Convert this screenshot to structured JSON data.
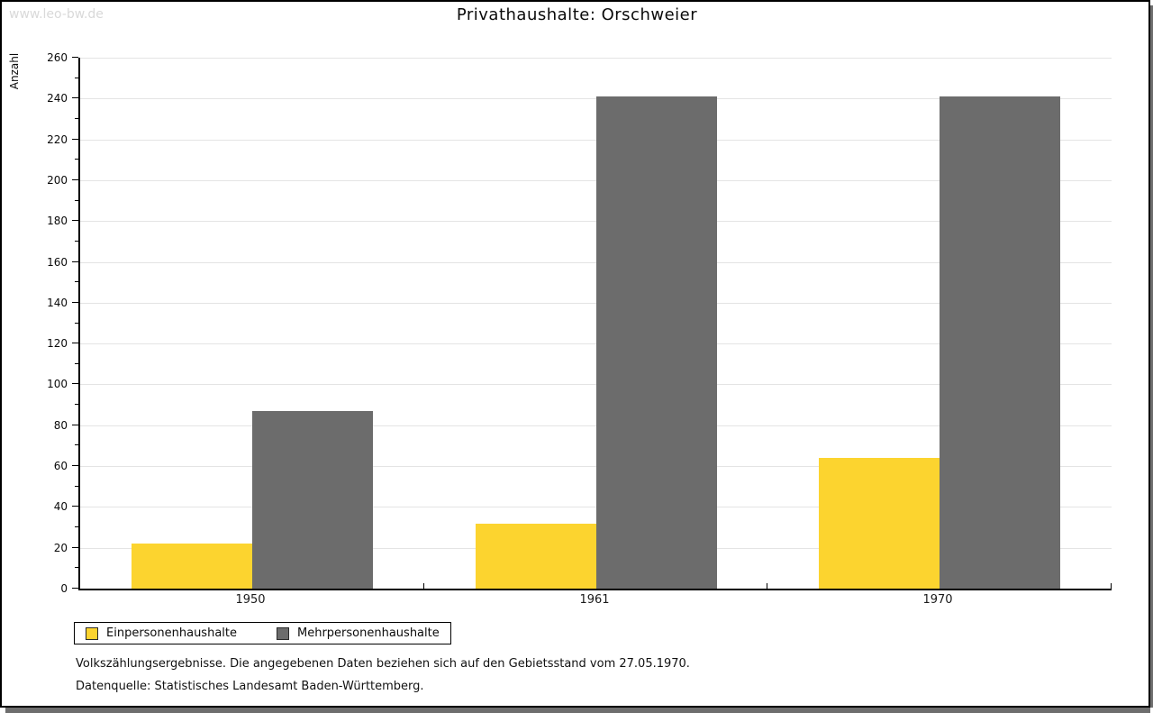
{
  "watermark": "www.leo-bw.de",
  "title": "Privathaushalte: Orschweier",
  "chart_data": {
    "type": "bar",
    "title": "Privathaushalte: Orschweier",
    "xlabel": "",
    "ylabel": "Anzahl",
    "categories": [
      "1950",
      "1961",
      "1970"
    ],
    "series": [
      {
        "name": "Einpersonenhaushalte",
        "color": "#FCD42F",
        "values": [
          22,
          32,
          64
        ]
      },
      {
        "name": "Mehrpersonenhaushalte",
        "color": "#6C6C6C",
        "values": [
          87,
          241,
          241
        ]
      }
    ],
    "ylim": [
      0,
      260
    ],
    "ytick_step": 20,
    "yminor_step": 10,
    "grid": "horizontal",
    "legend_position": "bottom-left"
  },
  "footnotes": [
    "Volkszählungsergebnisse. Die angegebenen Daten beziehen sich auf den Gebietsstand vom 27.05.1970.",
    "Datenquelle: Statistisches Landesamt Baden-Württemberg."
  ],
  "colors": {
    "bar_yellow": "#FCD42F",
    "bar_gray": "#6C6C6C",
    "gridline": "#E4E4E4",
    "axis": "#000000",
    "watermark": "#D9D9D9",
    "frame_shadow": "#6E6E6E",
    "background": "#FFFFFF"
  }
}
